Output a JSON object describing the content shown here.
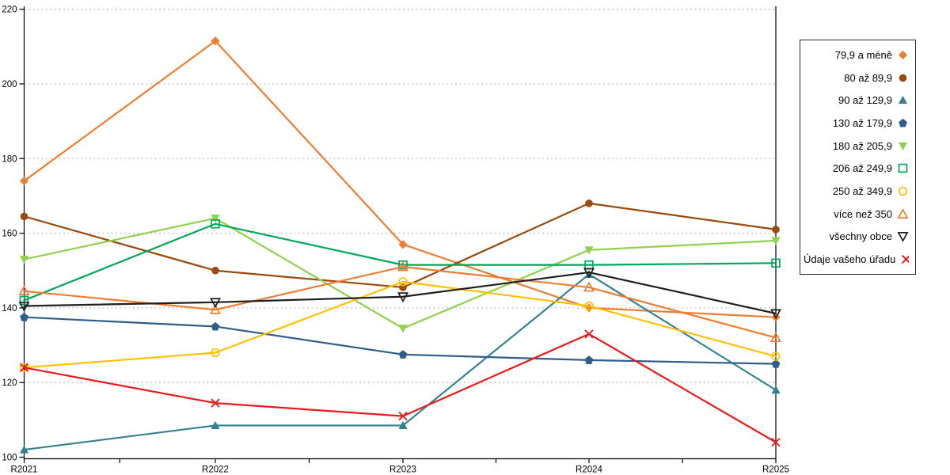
{
  "chart_data": {
    "type": "line",
    "title": "",
    "xlabel": "",
    "ylabel": "",
    "categories": [
      "R2021",
      "R2022",
      "R2023",
      "R2024",
      "R2025"
    ],
    "ylim": [
      100,
      220
    ],
    "ytick_step": 20,
    "ytick_labels": [
      "100",
      "120",
      "140",
      "160",
      "180",
      "200",
      "220"
    ],
    "grid": "horizontal dotted",
    "legend_position": "right",
    "colors": {
      "orange": "#ED7D31",
      "brown": "#9A4A0D",
      "teal": "#35828F",
      "navy": "#2F5D8C",
      "light_green": "#92D050",
      "green": "#00A859",
      "gold": "#FFC000",
      "black": "#1F1F1F",
      "red": "#E81C1C",
      "gridline": "#C3C3C3"
    },
    "series": [
      {
        "name": "79,9 a méně",
        "marker": "diamond",
        "fill": "filled",
        "color": "#ED7D31",
        "values": [
          174,
          211.5,
          157,
          140,
          137.5
        ]
      },
      {
        "name": "80 až 89,9",
        "marker": "circle",
        "fill": "filled",
        "color": "#9A4A0D",
        "values": [
          164.5,
          150,
          145.5,
          168,
          161
        ]
      },
      {
        "name": "90 až 129,9",
        "marker": "triangle-up",
        "fill": "filled",
        "color": "#35828F",
        "values": [
          102,
          108.5,
          108.5,
          149,
          118
        ]
      },
      {
        "name": "130 až 179,9",
        "marker": "pentagon",
        "fill": "filled",
        "color": "#2F5D8C",
        "values": [
          137.5,
          135,
          127.5,
          126,
          125
        ]
      },
      {
        "name": "180 až 205,9",
        "marker": "triangle-down",
        "fill": "filled",
        "color": "#92D050",
        "values": [
          153,
          164,
          134.5,
          155.5,
          158
        ]
      },
      {
        "name": "206 až 249,9",
        "marker": "square",
        "fill": "open",
        "color": "#00A859",
        "values": [
          142,
          162.5,
          151.5,
          151.5,
          152
        ]
      },
      {
        "name": "250 až 349,9",
        "marker": "circle",
        "fill": "open",
        "color": "#FFC000",
        "values": [
          124,
          128,
          147,
          140.5,
          127
        ]
      },
      {
        "name": "více než 350",
        "marker": "triangle-up",
        "fill": "open",
        "color": "#ED7D31",
        "values": [
          144.5,
          139.5,
          151,
          145.5,
          132
        ]
      },
      {
        "name": "všechny obce",
        "marker": "triangle-down",
        "fill": "open",
        "color": "#1F1F1F",
        "values": [
          140.5,
          141.5,
          143,
          149.5,
          138.5
        ]
      },
      {
        "name": "Údaje vašeho úřadu",
        "marker": "x",
        "fill": "open",
        "color": "#E81C1C",
        "values": [
          124,
          114.5,
          111,
          133,
          104
        ]
      }
    ]
  }
}
